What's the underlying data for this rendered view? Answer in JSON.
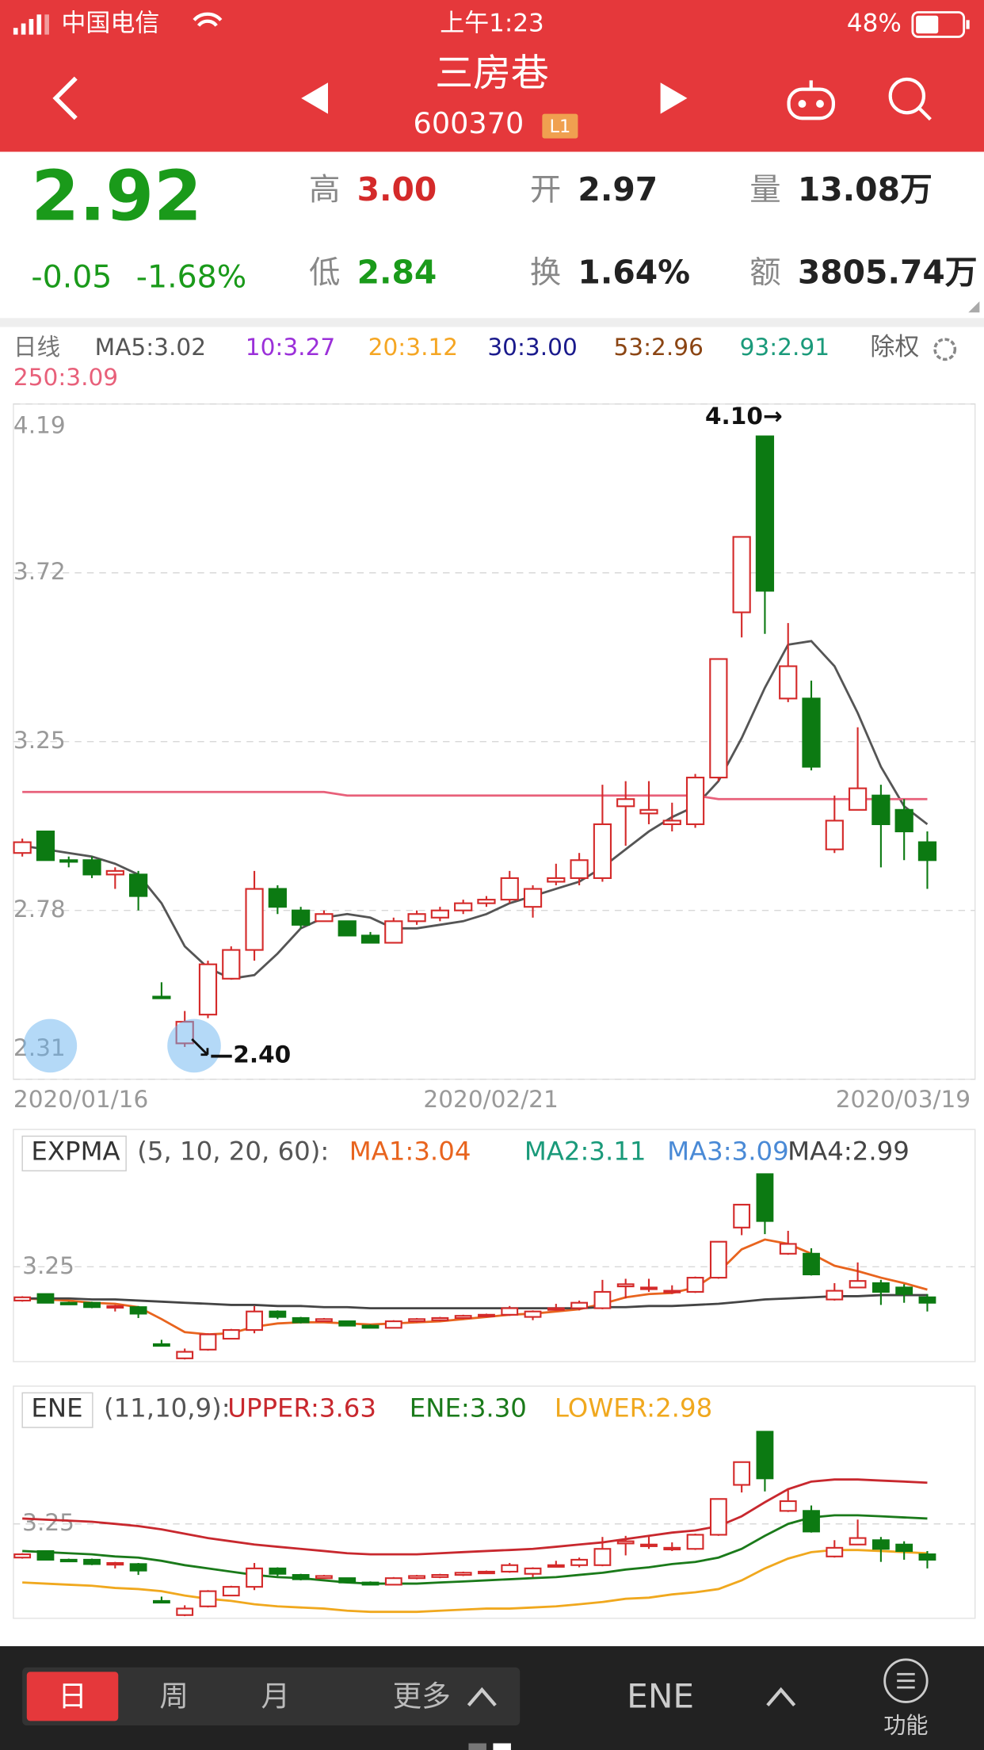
{
  "status_bar": {
    "carrier": "中国电信",
    "time": "上午1:23",
    "battery": "48%"
  },
  "header": {
    "title": "三房巷",
    "code": "600370",
    "badge": "L1"
  },
  "quote": {
    "price": "2.92",
    "change": "-0.05",
    "change_pct": "-1.68%",
    "fields": [
      {
        "label": "高",
        "value": "3.00",
        "color": "#d42a2a"
      },
      {
        "label": "开",
        "value": "2.97",
        "color": "#222222"
      },
      {
        "label": "量",
        "value": "13.08万",
        "color": "#222222"
      },
      {
        "label": "低",
        "value": "2.84",
        "color": "#1a9a1a"
      },
      {
        "label": "换",
        "value": "1.64%",
        "color": "#222222"
      },
      {
        "label": "额",
        "value": "3805.74万",
        "color": "#222222"
      }
    ]
  },
  "ma_legend": {
    "period": "日线",
    "adjust": "除权",
    "items": [
      {
        "text": "MA5:3.02",
        "color": "#555555"
      },
      {
        "text": "10:3.27",
        "color": "#9b30d9"
      },
      {
        "text": "20:3.12",
        "color": "#f5a623"
      },
      {
        "text": "30:3.00",
        "color": "#1a1a8c"
      },
      {
        "text": "53:2.96",
        "color": "#8b4513"
      },
      {
        "text": "93:2.91",
        "color": "#1a9a7a"
      },
      {
        "text": "250:3.09",
        "color": "#e8607a"
      }
    ]
  },
  "chart_data": [
    {
      "type": "candlestick",
      "up_color": "#d42a2a",
      "down_color": "#0c7a12",
      "open": [
        2.94,
        3.0,
        2.92,
        2.92,
        2.88,
        2.88,
        2.54,
        2.41,
        2.49,
        2.59,
        2.67,
        2.84,
        2.78,
        2.75,
        2.75,
        2.71,
        2.69,
        2.75,
        2.76,
        2.78,
        2.8,
        2.81,
        2.79,
        2.86,
        2.87,
        2.87,
        3.07,
        3.05,
        3.02,
        3.02,
        3.15,
        3.61,
        4.1,
        3.37,
        3.37,
        2.95,
        3.06,
        3.1,
        3.06,
        2.97
      ],
      "high": [
        2.98,
        3.0,
        2.93,
        2.93,
        2.9,
        2.89,
        2.58,
        2.5,
        2.64,
        2.68,
        2.89,
        2.85,
        2.79,
        2.78,
        2.75,
        2.72,
        2.76,
        2.78,
        2.79,
        2.81,
        2.82,
        2.89,
        2.85,
        2.91,
        2.94,
        3.13,
        3.14,
        3.14,
        3.08,
        3.16,
        3.48,
        3.82,
        4.1,
        3.58,
        3.42,
        3.1,
        3.29,
        3.13,
        3.09,
        3.0
      ],
      "low": [
        2.93,
        2.92,
        2.9,
        2.87,
        2.84,
        2.78,
        2.54,
        2.4,
        2.48,
        2.59,
        2.64,
        2.77,
        2.73,
        2.75,
        2.71,
        2.69,
        2.69,
        2.74,
        2.75,
        2.77,
        2.79,
        2.8,
        2.76,
        2.85,
        2.85,
        2.86,
        2.96,
        3.02,
        3.0,
        3.01,
        3.14,
        3.54,
        3.55,
        3.36,
        3.17,
        2.94,
        3.06,
        2.9,
        2.92,
        2.84
      ],
      "close": [
        2.97,
        2.92,
        2.92,
        2.88,
        2.89,
        2.82,
        2.54,
        2.47,
        2.63,
        2.67,
        2.84,
        2.79,
        2.74,
        2.77,
        2.71,
        2.69,
        2.75,
        2.77,
        2.78,
        2.8,
        2.81,
        2.87,
        2.84,
        2.87,
        2.92,
        3.02,
        3.09,
        3.06,
        3.03,
        3.15,
        3.48,
        3.82,
        3.67,
        3.46,
        3.18,
        3.03,
        3.12,
        3.02,
        3.0,
        2.92
      ],
      "ylim": [
        2.31,
        4.19
      ],
      "yticks": [
        4.19,
        3.72,
        3.25,
        2.78,
        2.31
      ],
      "grid": true,
      "x_labels": [
        "2020/01/16",
        "2020/02/21",
        "2020/03/19"
      ],
      "annotations": [
        "4.10→",
        "—2.40"
      ],
      "lines": [
        {
          "color": "#555555",
          "values": [
            2.96,
            2.95,
            2.94,
            2.93,
            2.91,
            2.88,
            2.8,
            2.68,
            2.62,
            2.59,
            2.6,
            2.66,
            2.73,
            2.76,
            2.77,
            2.76,
            2.73,
            2.73,
            2.74,
            2.75,
            2.77,
            2.8,
            2.82,
            2.84,
            2.86,
            2.9,
            2.95,
            3.0,
            3.04,
            3.07,
            3.14,
            3.26,
            3.4,
            3.52,
            3.53,
            3.46,
            3.33,
            3.18,
            3.07,
            3.02
          ]
        },
        {
          "color": "#e8607a",
          "values": [
            3.11,
            3.11,
            3.11,
            3.11,
            3.11,
            3.11,
            3.11,
            3.11,
            3.11,
            3.11,
            3.11,
            3.11,
            3.11,
            3.11,
            3.1,
            3.1,
            3.1,
            3.1,
            3.1,
            3.1,
            3.1,
            3.1,
            3.1,
            3.1,
            3.1,
            3.1,
            3.1,
            3.1,
            3.1,
            3.1,
            3.09,
            3.09,
            3.09,
            3.09,
            3.09,
            3.09,
            3.09,
            3.09,
            3.09,
            3.09
          ]
        }
      ]
    },
    {
      "type": "candlestick",
      "ylim": [
        2.38,
        4.51
      ],
      "yticks": [
        3.25
      ],
      "grid": true,
      "legend": {
        "label": "EXPMA",
        "params": "(5, 10, 20, 60):",
        "items": [
          {
            "text": "MA1:3.04",
            "color": "#e8641e"
          },
          {
            "text": "MA2:3.11",
            "color": "#1a9a7a"
          },
          {
            "text": "MA3:3.09",
            "color": "#4a8ad6"
          },
          {
            "text": "MA4:2.99",
            "color": "#444444"
          }
        ]
      },
      "lines": [
        {
          "color": "#e8641e",
          "values": [
            2.96,
            2.95,
            2.94,
            2.92,
            2.91,
            2.88,
            2.77,
            2.65,
            2.63,
            2.64,
            2.7,
            2.73,
            2.74,
            2.74,
            2.73,
            2.72,
            2.73,
            2.74,
            2.75,
            2.77,
            2.79,
            2.81,
            2.82,
            2.84,
            2.86,
            2.91,
            2.97,
            3.0,
            3.01,
            3.06,
            3.2,
            3.41,
            3.5,
            3.46,
            3.37,
            3.26,
            3.21,
            3.15,
            3.1,
            3.04
          ]
        },
        {
          "color": "#444444",
          "values": [
            2.96,
            2.96,
            2.96,
            2.95,
            2.95,
            2.94,
            2.93,
            2.92,
            2.91,
            2.9,
            2.9,
            2.89,
            2.89,
            2.88,
            2.88,
            2.87,
            2.87,
            2.87,
            2.87,
            2.87,
            2.87,
            2.87,
            2.87,
            2.87,
            2.87,
            2.88,
            2.88,
            2.89,
            2.89,
            2.9,
            2.91,
            2.93,
            2.95,
            2.96,
            2.97,
            2.98,
            2.98,
            2.99,
            2.99,
            2.99
          ]
        }
      ]
    },
    {
      "type": "candlestick",
      "ylim": [
        2.38,
        4.52
      ],
      "yticks": [
        3.25
      ],
      "grid": true,
      "legend": {
        "label": "ENE",
        "params": "(11,10,9):",
        "items": [
          {
            "text": "UPPER:3.63",
            "color": "#c8282e"
          },
          {
            "text": "ENE:3.30",
            "color": "#1a7a1a"
          },
          {
            "text": "LOWER:2.98",
            "color": "#f0a81e"
          }
        ]
      },
      "lines": [
        {
          "color": "#c8282e",
          "values": [
            3.3,
            3.29,
            3.28,
            3.27,
            3.25,
            3.23,
            3.2,
            3.16,
            3.12,
            3.09,
            3.06,
            3.04,
            3.02,
            3.0,
            2.98,
            2.97,
            2.97,
            2.97,
            2.98,
            2.99,
            3.0,
            3.01,
            3.02,
            3.04,
            3.06,
            3.08,
            3.11,
            3.14,
            3.17,
            3.19,
            3.23,
            3.32,
            3.45,
            3.57,
            3.64,
            3.66,
            3.66,
            3.65,
            3.64,
            3.63
          ]
        },
        {
          "color": "#1a7a1a",
          "values": [
            3.0,
            2.99,
            2.98,
            2.97,
            2.95,
            2.94,
            2.91,
            2.87,
            2.84,
            2.81,
            2.78,
            2.76,
            2.75,
            2.73,
            2.71,
            2.7,
            2.7,
            2.7,
            2.71,
            2.72,
            2.73,
            2.74,
            2.75,
            2.76,
            2.78,
            2.8,
            2.83,
            2.85,
            2.88,
            2.9,
            2.94,
            3.02,
            3.14,
            3.25,
            3.31,
            3.33,
            3.33,
            3.32,
            3.31,
            3.3
          ]
        },
        {
          "color": "#f0a81e",
          "values": [
            2.71,
            2.7,
            2.69,
            2.68,
            2.66,
            2.65,
            2.63,
            2.59,
            2.56,
            2.54,
            2.51,
            2.49,
            2.48,
            2.47,
            2.45,
            2.44,
            2.44,
            2.44,
            2.45,
            2.46,
            2.47,
            2.47,
            2.48,
            2.49,
            2.51,
            2.53,
            2.56,
            2.57,
            2.6,
            2.62,
            2.65,
            2.73,
            2.84,
            2.93,
            2.99,
            3.01,
            3.01,
            3.0,
            2.99,
            2.98
          ]
        }
      ]
    }
  ],
  "tabs": {
    "items": [
      "日",
      "周",
      "月",
      "更多"
    ],
    "indicator": "ENE",
    "menu": "功能"
  }
}
